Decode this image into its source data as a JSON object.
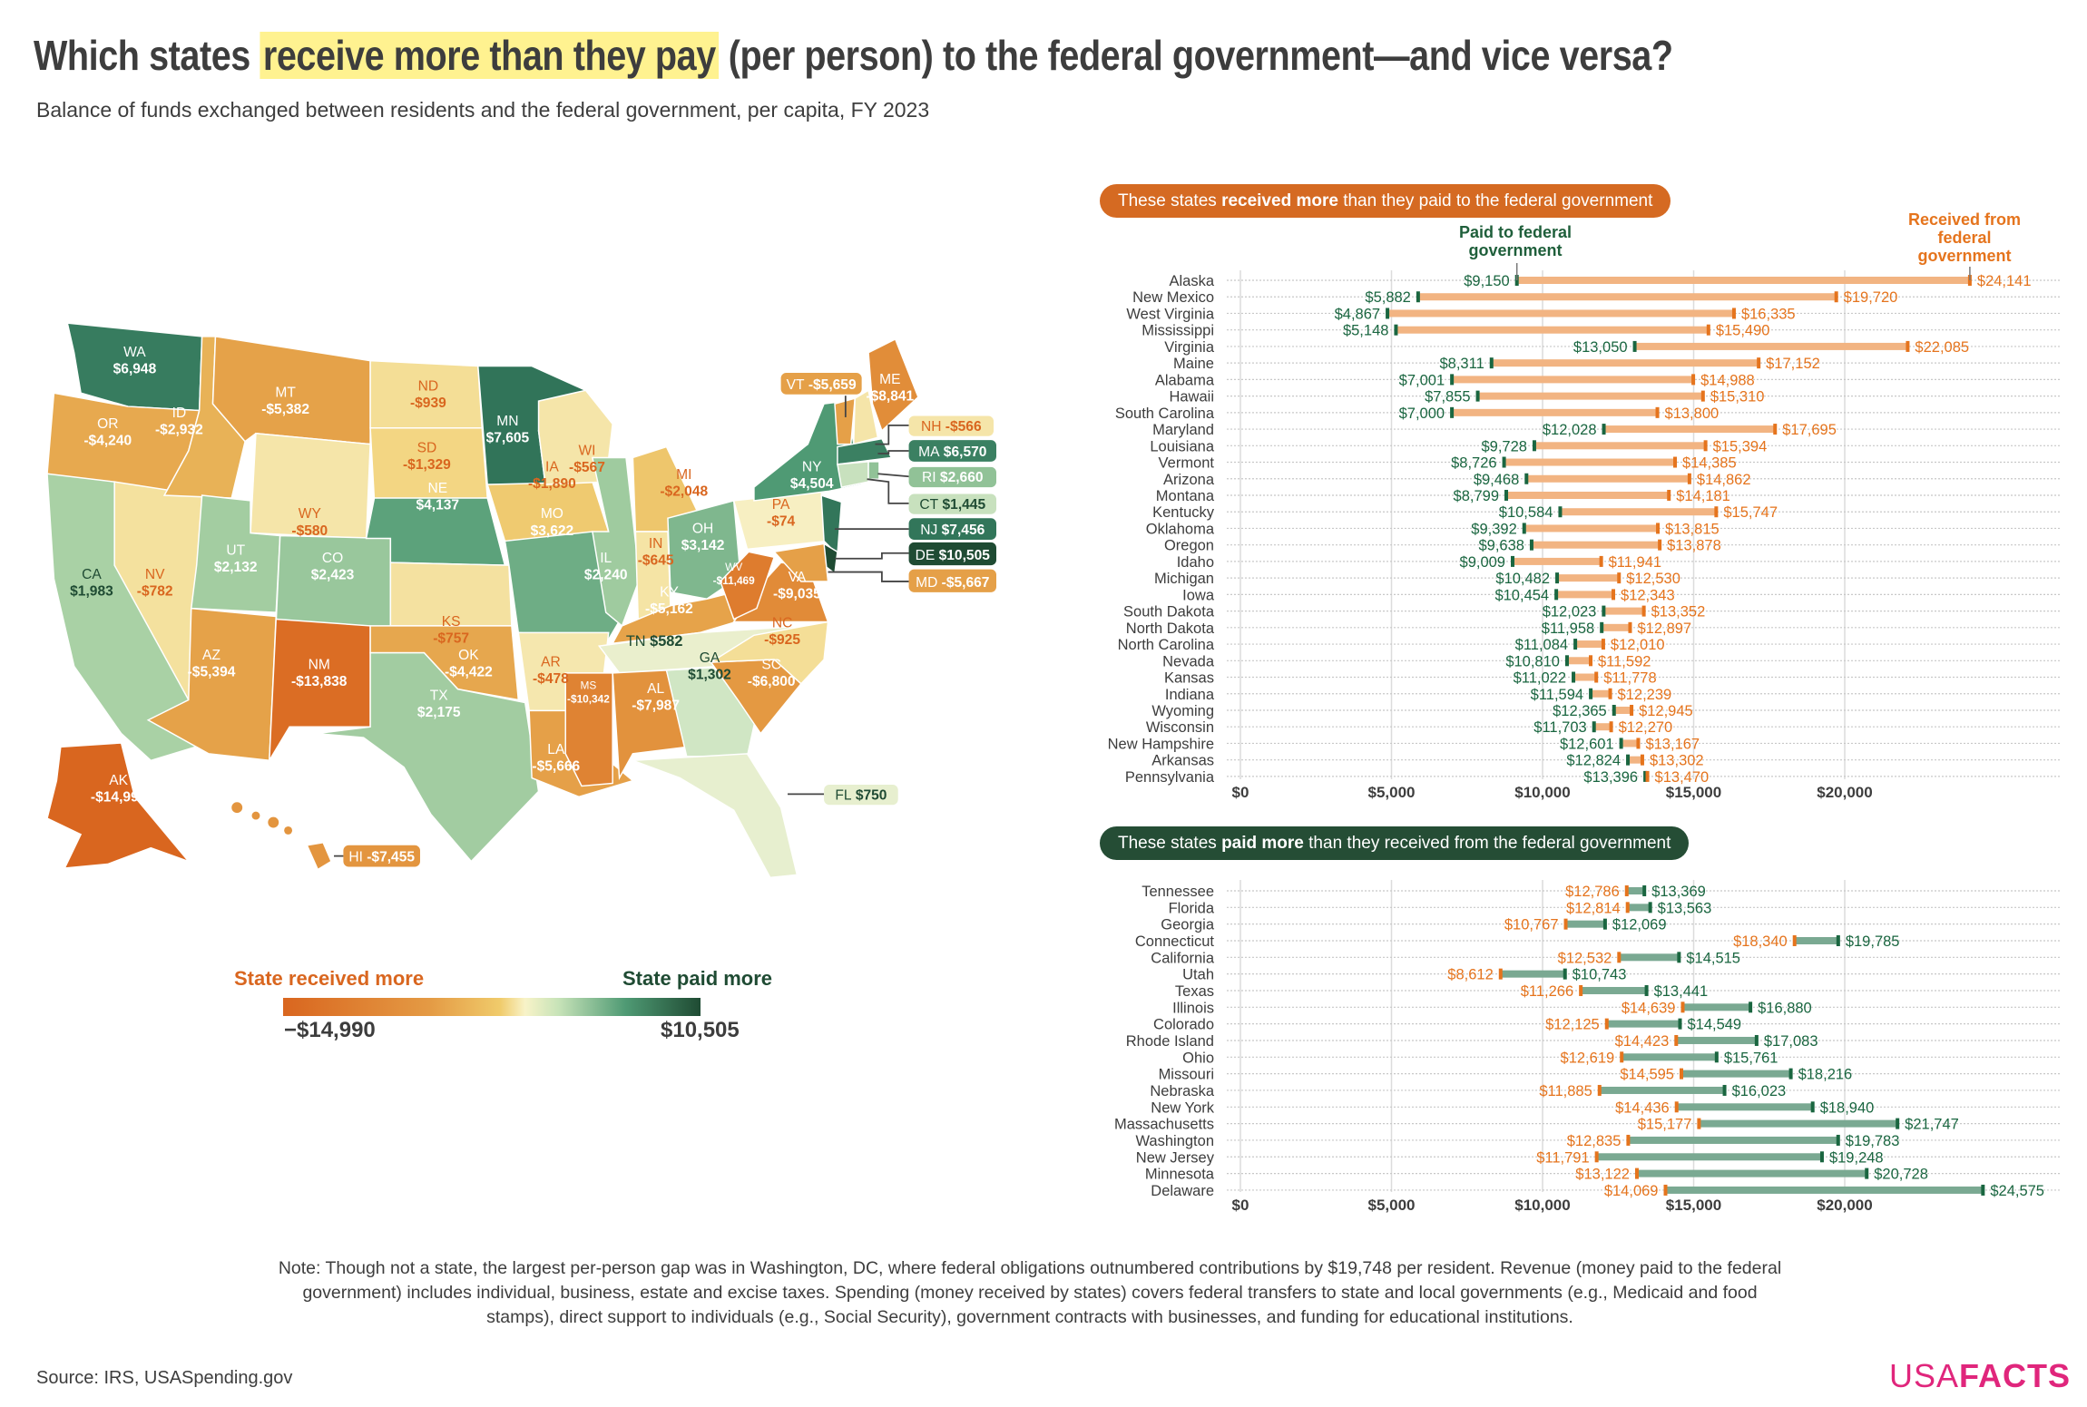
{
  "header": {
    "title_pre": "Which states ",
    "title_highlight": "receive more than they pay",
    "title_post": " (per person) to the federal government—and vice versa?",
    "subtitle": "Balance of funds exchanged between residents and the federal government, per capita, FY 2023"
  },
  "legend": {
    "received_label": "State received more",
    "paid_label": "State paid more",
    "min_label": "−$14,990",
    "max_label": "$10,505",
    "min_value": -14990,
    "max_value": 10505
  },
  "colors": {
    "received": "#d9661f",
    "paid": "#1f4b33",
    "received_bar": "#f2b482",
    "paid_bar": "#7aa992",
    "highlight": "#fff290",
    "brand": "#e0267c"
  },
  "map": {
    "states": [
      {
        "abbr": "WA",
        "label": "$6,948",
        "value": 6948
      },
      {
        "abbr": "OR",
        "label": "-$4,240",
        "value": -4240
      },
      {
        "abbr": "CA",
        "label": "$1,983",
        "value": 1983
      },
      {
        "abbr": "NV",
        "label": "-$782",
        "value": -782
      },
      {
        "abbr": "ID",
        "label": "-$2,932",
        "value": -2932
      },
      {
        "abbr": "MT",
        "label": "-$5,382",
        "value": -5382
      },
      {
        "abbr": "WY",
        "label": "-$580",
        "value": -580
      },
      {
        "abbr": "UT",
        "label": "$2,132",
        "value": 2132
      },
      {
        "abbr": "CO",
        "label": "$2,423",
        "value": 2423
      },
      {
        "abbr": "AZ",
        "label": "-$5,394",
        "value": -5394
      },
      {
        "abbr": "NM",
        "label": "-$13,838",
        "value": -13838
      },
      {
        "abbr": "ND",
        "label": "-$939",
        "value": -939
      },
      {
        "abbr": "SD",
        "label": "-$1,329",
        "value": -1329
      },
      {
        "abbr": "NE",
        "label": "$4,137",
        "value": 4137
      },
      {
        "abbr": "KS",
        "label": "-$757",
        "value": -757
      },
      {
        "abbr": "OK",
        "label": "-$4,422",
        "value": -4422
      },
      {
        "abbr": "TX",
        "label": "$2,175",
        "value": 2175
      },
      {
        "abbr": "MN",
        "label": "$7,605",
        "value": 7605
      },
      {
        "abbr": "IA",
        "label": "-$1,890",
        "value": -1890
      },
      {
        "abbr": "MO",
        "label": "$3,622",
        "value": 3622
      },
      {
        "abbr": "AR",
        "label": "-$478",
        "value": -478
      },
      {
        "abbr": "LA",
        "label": "-$5,666",
        "value": -5666
      },
      {
        "abbr": "WI",
        "label": "-$567",
        "value": -567
      },
      {
        "abbr": "IL",
        "label": "$2,240",
        "value": 2240
      },
      {
        "abbr": "MI",
        "label": "-$2,048",
        "value": -2048
      },
      {
        "abbr": "IN",
        "label": "-$645",
        "value": -645
      },
      {
        "abbr": "OH",
        "label": "$3,142",
        "value": 3142
      },
      {
        "abbr": "KY",
        "label": "-$5,162",
        "value": -5162
      },
      {
        "abbr": "TN",
        "label": "$582",
        "value": 582
      },
      {
        "abbr": "MS",
        "label": "-$10,342",
        "value": -10342
      },
      {
        "abbr": "AL",
        "label": "-$7,987",
        "value": -7987
      },
      {
        "abbr": "GA",
        "label": "$1,302",
        "value": 1302
      },
      {
        "abbr": "FL",
        "label": "$750",
        "value": 750
      },
      {
        "abbr": "SC",
        "label": "-$6,800",
        "value": -6800
      },
      {
        "abbr": "NC",
        "label": "-$925",
        "value": -925
      },
      {
        "abbr": "VA",
        "label": "-$9,035",
        "value": -9035
      },
      {
        "abbr": "WV",
        "label": "-$11,469",
        "value": -11469
      },
      {
        "abbr": "PA",
        "label": "-$74",
        "value": -74
      },
      {
        "abbr": "NY",
        "label": "$4,504",
        "value": 4504
      },
      {
        "abbr": "NJ",
        "label": "$7,456",
        "value": 7456
      },
      {
        "abbr": "DE",
        "label": "$10,505",
        "value": 10505
      },
      {
        "abbr": "MD",
        "label": "-$5,667",
        "value": -5667
      },
      {
        "abbr": "VT",
        "label": "-$5,659",
        "value": -5659
      },
      {
        "abbr": "NH",
        "label": "-$566",
        "value": -566
      },
      {
        "abbr": "ME",
        "label": "-$8,841",
        "value": -8841
      },
      {
        "abbr": "MA",
        "label": "$6,570",
        "value": 6570
      },
      {
        "abbr": "CT",
        "label": "$1,445",
        "value": 1445
      },
      {
        "abbr": "RI",
        "label": "$2,660",
        "value": 2660
      },
      {
        "abbr": "AK",
        "label": "-$14,990",
        "value": -14990
      },
      {
        "abbr": "HI",
        "label": "-$7,455",
        "value": -7455
      }
    ]
  },
  "top_section": {
    "badge_pre": "These states ",
    "badge_bold": "received more",
    "badge_post": " than they paid to the federal government",
    "paid_header": "Paid to federal government",
    "received_header": "Received from federal government"
  },
  "bottom_section": {
    "badge_pre": "These states ",
    "badge_bold": "paid more",
    "badge_post": " than they received from the federal government"
  },
  "chart_data": [
    {
      "type": "dumbbell",
      "title": "These states received more than they paid to the federal government",
      "xlim": [
        0,
        25000
      ],
      "x_ticks": [
        "$0",
        "$5,000",
        "$10,000",
        "$15,000",
        "$20,000"
      ],
      "x_tick_values": [
        0,
        5000,
        10000,
        15000,
        20000
      ],
      "grid": true,
      "series": [
        {
          "name": "Paid to federal government"
        },
        {
          "name": "Received from federal government"
        }
      ],
      "rows": [
        {
          "state": "Alaska",
          "paid": 9150,
          "received": 24141
        },
        {
          "state": "New Mexico",
          "paid": 5882,
          "received": 19720
        },
        {
          "state": "West Virginia",
          "paid": 4867,
          "received": 16335
        },
        {
          "state": "Mississippi",
          "paid": 5148,
          "received": 15490
        },
        {
          "state": "Virginia",
          "paid": 13050,
          "received": 22085
        },
        {
          "state": "Maine",
          "paid": 8311,
          "received": 17152
        },
        {
          "state": "Alabama",
          "paid": 7001,
          "received": 14988
        },
        {
          "state": "Hawaii",
          "paid": 7855,
          "received": 15310
        },
        {
          "state": "South Carolina",
          "paid": 7000,
          "received": 13800
        },
        {
          "state": "Maryland",
          "paid": 12028,
          "received": 17695
        },
        {
          "state": "Louisiana",
          "paid": 9728,
          "received": 15394
        },
        {
          "state": "Vermont",
          "paid": 8726,
          "received": 14385
        },
        {
          "state": "Arizona",
          "paid": 9468,
          "received": 14862
        },
        {
          "state": "Montana",
          "paid": 8799,
          "received": 14181
        },
        {
          "state": "Kentucky",
          "paid": 10584,
          "received": 15747
        },
        {
          "state": "Oklahoma",
          "paid": 9392,
          "received": 13815
        },
        {
          "state": "Oregon",
          "paid": 9638,
          "received": 13878
        },
        {
          "state": "Idaho",
          "paid": 9009,
          "received": 11941
        },
        {
          "state": "Michigan",
          "paid": 10482,
          "received": 12530
        },
        {
          "state": "Iowa",
          "paid": 10454,
          "received": 12343
        },
        {
          "state": "South Dakota",
          "paid": 12023,
          "received": 13352
        },
        {
          "state": "North Dakota",
          "paid": 11958,
          "received": 12897
        },
        {
          "state": "North Carolina",
          "paid": 11084,
          "received": 12010
        },
        {
          "state": "Nevada",
          "paid": 10810,
          "received": 11592
        },
        {
          "state": "Kansas",
          "paid": 11022,
          "received": 11778
        },
        {
          "state": "Indiana",
          "paid": 11594,
          "received": 12239
        },
        {
          "state": "Wyoming",
          "paid": 12365,
          "received": 12945
        },
        {
          "state": "Wisconsin",
          "paid": 11703,
          "received": 12270
        },
        {
          "state": "New Hampshire",
          "paid": 12601,
          "received": 13167
        },
        {
          "state": "Arkansas",
          "paid": 12824,
          "received": 13302
        },
        {
          "state": "Pennsylvania",
          "paid": 13396,
          "received": 13470
        }
      ]
    },
    {
      "type": "dumbbell",
      "title": "These states paid more than they received from the federal government",
      "xlim": [
        0,
        25000
      ],
      "x_ticks": [
        "$0",
        "$5,000",
        "$10,000",
        "$15,000",
        "$20,000"
      ],
      "x_tick_values": [
        0,
        5000,
        10000,
        15000,
        20000
      ],
      "grid": true,
      "rows": [
        {
          "state": "Tennessee",
          "received": 12786,
          "paid": 13369
        },
        {
          "state": "Florida",
          "received": 12814,
          "paid": 13563
        },
        {
          "state": "Georgia",
          "received": 10767,
          "paid": 12069
        },
        {
          "state": "Connecticut",
          "received": 18340,
          "paid": 19785
        },
        {
          "state": "California",
          "received": 12532,
          "paid": 14515
        },
        {
          "state": "Utah",
          "received": 8612,
          "paid": 10743
        },
        {
          "state": "Texas",
          "received": 11266,
          "paid": 13441
        },
        {
          "state": "Illinois",
          "received": 14639,
          "paid": 16880
        },
        {
          "state": "Colorado",
          "received": 12125,
          "paid": 14549
        },
        {
          "state": "Rhode Island",
          "received": 14423,
          "paid": 17083
        },
        {
          "state": "Ohio",
          "received": 12619,
          "paid": 15761
        },
        {
          "state": "Missouri",
          "received": 14595,
          "paid": 18216
        },
        {
          "state": "Nebraska",
          "received": 11885,
          "paid": 16023
        },
        {
          "state": "New York",
          "received": 14436,
          "paid": 18940
        },
        {
          "state": "Massachusetts",
          "received": 15177,
          "paid": 21747
        },
        {
          "state": "Washington",
          "received": 12835,
          "paid": 19783
        },
        {
          "state": "New Jersey",
          "received": 11791,
          "paid": 19248
        },
        {
          "state": "Minnesota",
          "received": 13122,
          "paid": 20728
        },
        {
          "state": "Delaware",
          "received": 14069,
          "paid": 24575
        }
      ]
    }
  ],
  "footer": {
    "note": "Note: Though not a state, the largest per-person gap was in Washington, DC, where federal obligations outnumbered contributions by $19,748 per resident. Revenue (money paid to the federal government) includes individual, business, estate and excise taxes. Spending (money received by states) covers federal transfers to state and local governments (e.g., Medicaid and food stamps), direct support to individuals (e.g., Social Security), government contracts with businesses, and funding for educational institutions.",
    "source": "Source: IRS, USASpending.gov",
    "logo_light": "USA",
    "logo_bold": "FACTS"
  }
}
